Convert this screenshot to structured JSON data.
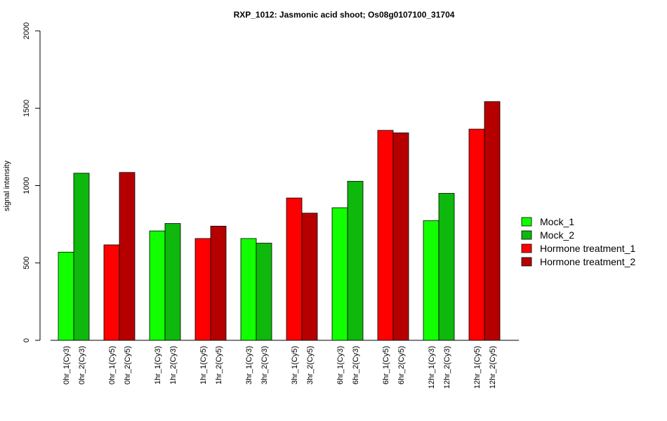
{
  "chart_data": {
    "type": "bar",
    "title": "RXP_1012: Jasmonic acid shoot; Os08g0107100_31704",
    "ylabel": "signal intensity",
    "xlabel": "",
    "ylim": [
      0,
      2000
    ],
    "y_ticks": [
      "0",
      "500",
      "1000",
      "1500",
      "2000"
    ],
    "grid": false,
    "legend_position": "right",
    "bars": [
      {
        "label": "0hr_1(Cy3)",
        "value": 570,
        "series": "Mock_1"
      },
      {
        "label": "0hr_2(Cy3)",
        "value": 1080,
        "series": "Mock_2"
      },
      {
        "label": "0hr_1(Cy5)",
        "value": 617,
        "series": "Hormone treatment_1"
      },
      {
        "label": "0hr_2(Cy5)",
        "value": 1085,
        "series": "Hormone treatment_2"
      },
      {
        "label": "1hr_1(Cy3)",
        "value": 707,
        "series": "Mock_1"
      },
      {
        "label": "1hr_2(Cy3)",
        "value": 755,
        "series": "Mock_2"
      },
      {
        "label": "1hr_1(Cy5)",
        "value": 658,
        "series": "Hormone treatment_1"
      },
      {
        "label": "1hr_2(Cy5)",
        "value": 738,
        "series": "Hormone treatment_2"
      },
      {
        "label": "3hr_1(Cy3)",
        "value": 658,
        "series": "Mock_1"
      },
      {
        "label": "3hr_2(Cy3)",
        "value": 628,
        "series": "Mock_2"
      },
      {
        "label": "3hr_1(Cy5)",
        "value": 920,
        "series": "Hormone treatment_1"
      },
      {
        "label": "3hr_2(Cy5)",
        "value": 822,
        "series": "Hormone treatment_2"
      },
      {
        "label": "6hr_1(Cy3)",
        "value": 857,
        "series": "Mock_1"
      },
      {
        "label": "6hr_2(Cy3)",
        "value": 1028,
        "series": "Mock_2"
      },
      {
        "label": "6hr_1(Cy5)",
        "value": 1357,
        "series": "Hormone treatment_1"
      },
      {
        "label": "6hr_2(Cy5)",
        "value": 1341,
        "series": "Hormone treatment_2"
      },
      {
        "label": "12hr_1(Cy3)",
        "value": 773,
        "series": "Mock_1"
      },
      {
        "label": "12hr_2(Cy3)",
        "value": 950,
        "series": "Mock_2"
      },
      {
        "label": "12hr_1(Cy5)",
        "value": 1365,
        "series": "Hormone treatment_1"
      },
      {
        "label": "12hr_2(Cy5)",
        "value": 1543,
        "series": "Hormone treatment_2"
      }
    ],
    "legend": [
      {
        "name": "Mock_1",
        "color": "#11ff00"
      },
      {
        "name": "Mock_2",
        "color": "#0eb80c"
      },
      {
        "name": "Hormone treatment_1",
        "color": "#ff0000"
      },
      {
        "name": "Hormone treatment_2",
        "color": "#b60000"
      }
    ]
  }
}
